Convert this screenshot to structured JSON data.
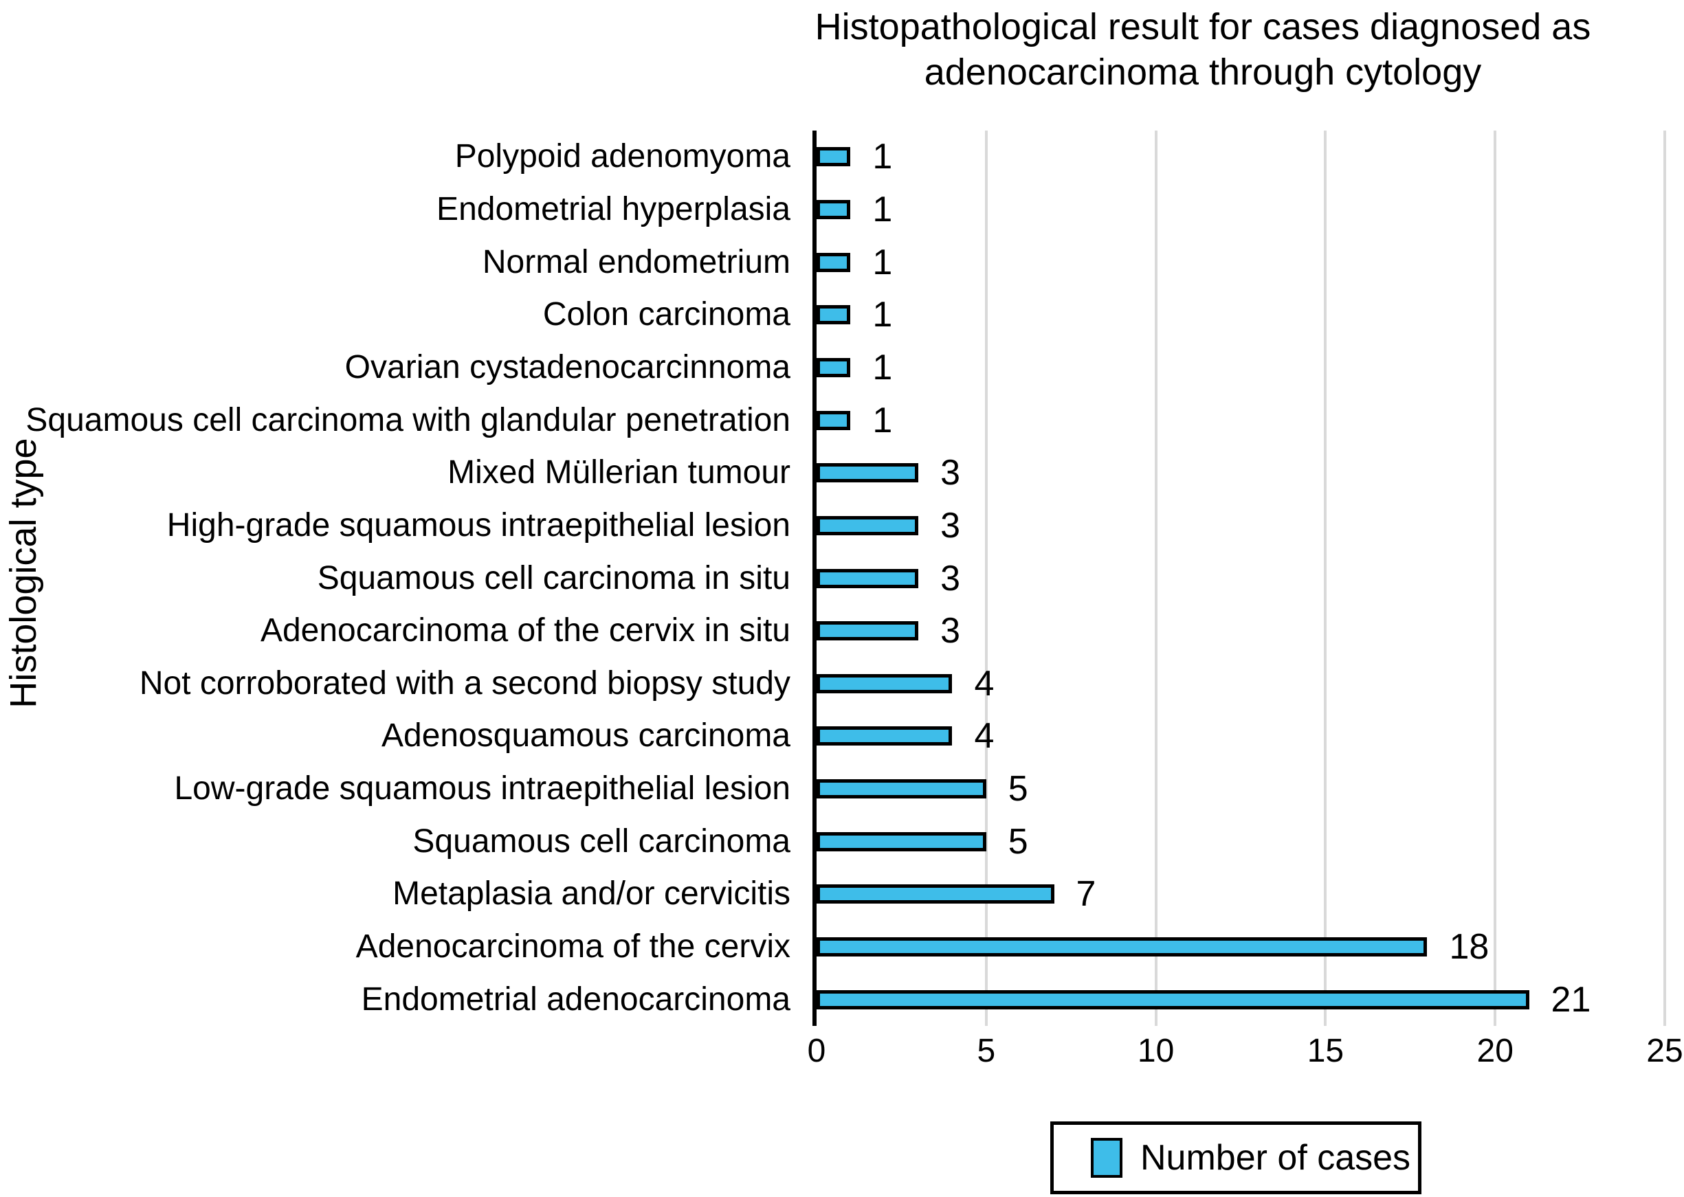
{
  "title": {
    "line1": "Histopathological result for cases diagnosed as",
    "line2": "adenocarcinoma through cytology"
  },
  "y_axis_title": "Histological type",
  "legend": {
    "label": "Number of cases"
  },
  "colors": {
    "bar_fill": "#3EBDE9",
    "bar_border": "#000000",
    "gridline": "#D9D9D9",
    "axis_line": "#000000",
    "text": "#000000",
    "background": "#FFFFFF"
  },
  "chart_data": {
    "type": "bar",
    "orientation": "horizontal",
    "title": "Histopathological result for cases diagnosed as adenocarcinoma through cytology",
    "xlabel": "",
    "ylabel": "Histological type",
    "categories": [
      "Polypoid adenomyoma",
      "Endometrial hyperplasia",
      "Normal endometrium",
      "Colon carcinoma",
      "Ovarian cystadenocarcinnoma",
      "Squamous cell carcinoma with glandular penetration",
      "Mixed Müllerian tumour",
      "High-grade squamous intraepithelial lesion",
      "Squamous cell carcinoma in situ",
      "Adenocarcinoma of the cervix in situ",
      "Not corroborated with a second biopsy study",
      "Adenosquamous carcinoma",
      "Low-grade squamous intraepithelial lesion",
      "Squamous cell carcinoma",
      "Metaplasia and/or cervicitis",
      "Adenocarcinoma of the cervix",
      "Endometrial adenocarcinoma"
    ],
    "values": [
      1,
      1,
      1,
      1,
      1,
      1,
      3,
      3,
      3,
      3,
      4,
      4,
      5,
      5,
      7,
      18,
      21
    ],
    "data_labels": [
      1,
      1,
      1,
      1,
      1,
      1,
      3,
      3,
      3,
      3,
      4,
      4,
      5,
      5,
      7,
      18,
      21
    ],
    "xlim": [
      0,
      25
    ],
    "xticks": [
      0,
      5,
      10,
      15,
      20,
      25
    ],
    "grid": "vertical-gridlines",
    "legend_entries": [
      "Number of cases"
    ],
    "legend_position": "bottom-right"
  }
}
